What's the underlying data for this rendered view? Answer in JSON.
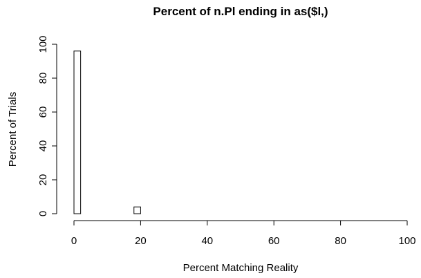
{
  "chart_data": {
    "type": "bar",
    "title": "Percent of n.Pl ending in as($l,)",
    "xlabel": "Percent Matching Reality",
    "ylabel": "Percent of Trials",
    "xlim": [
      0,
      100
    ],
    "ylim": [
      0,
      100
    ],
    "xticks": [
      0,
      20,
      40,
      60,
      80,
      100
    ],
    "yticks": [
      0,
      20,
      40,
      60,
      80,
      100
    ],
    "bin_width": 2,
    "bins": [
      {
        "x0": 0,
        "x1": 2,
        "value": 96
      },
      {
        "x0": 2,
        "x1": 4,
        "value": 0
      },
      {
        "x0": 4,
        "x1": 6,
        "value": 0
      },
      {
        "x0": 6,
        "x1": 8,
        "value": 0
      },
      {
        "x0": 8,
        "x1": 10,
        "value": 0
      },
      {
        "x0": 10,
        "x1": 12,
        "value": 0
      },
      {
        "x0": 12,
        "x1": 14,
        "value": 0
      },
      {
        "x0": 14,
        "x1": 16,
        "value": 0
      },
      {
        "x0": 16,
        "x1": 18,
        "value": 0
      },
      {
        "x0": 18,
        "x1": 20,
        "value": 4
      }
    ],
    "grid": false
  }
}
